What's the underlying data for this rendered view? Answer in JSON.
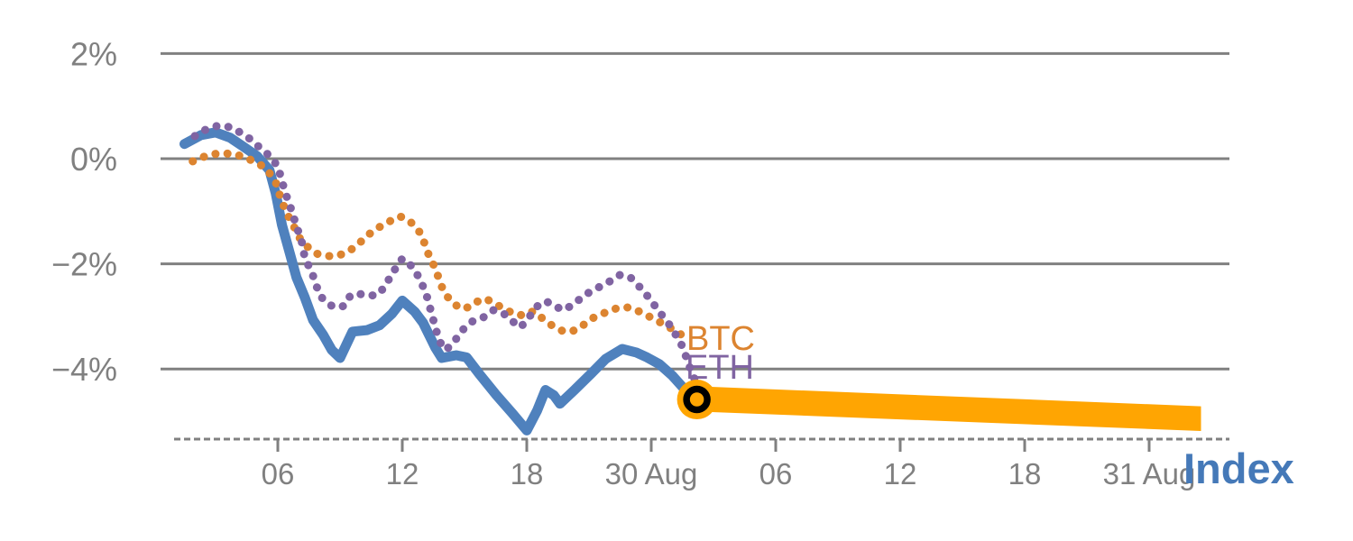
{
  "chart_data": {
    "type": "line",
    "title": "",
    "description": "Percent change of crypto Index (solid blue) vs BTC and ETH (dotted) over ~2 days with an orange projection band extending to 31 Aug",
    "x_axis": {
      "unit": "hours (ticks every 6h; day boundaries labeled with date)",
      "ticks": [
        {
          "hour": 6,
          "label": "06"
        },
        {
          "hour": 12,
          "label": "12"
        },
        {
          "hour": 18,
          "label": "18"
        },
        {
          "hour": 24,
          "label": "30 Aug"
        },
        {
          "hour": 30,
          "label": "06"
        },
        {
          "hour": 36,
          "label": "12"
        },
        {
          "hour": 42,
          "label": "18"
        },
        {
          "hour": 48,
          "label": "31 Aug"
        }
      ]
    },
    "y_axis": {
      "unit": "percent change",
      "ticks": [
        {
          "value": 2,
          "label": "2%"
        },
        {
          "value": 0,
          "label": "0%"
        },
        {
          "value": -2,
          "label": "−2%"
        },
        {
          "value": -4,
          "label": "−4%"
        }
      ],
      "ylim": [
        -5.4,
        2.3
      ],
      "grid": true
    },
    "series": [
      {
        "name": "Index",
        "style": "solid",
        "color": "#4F81BD",
        "points": [
          [
            1.5,
            0.28
          ],
          [
            2.3,
            0.45
          ],
          [
            3.0,
            0.5
          ],
          [
            3.7,
            0.4
          ],
          [
            4.3,
            0.24
          ],
          [
            5.0,
            0.05
          ],
          [
            5.6,
            -0.22
          ],
          [
            5.9,
            -0.66
          ],
          [
            6.2,
            -1.26
          ],
          [
            6.6,
            -1.83
          ],
          [
            6.9,
            -2.26
          ],
          [
            7.3,
            -2.64
          ],
          [
            7.7,
            -3.07
          ],
          [
            8.2,
            -3.36
          ],
          [
            8.6,
            -3.64
          ],
          [
            9.0,
            -3.79
          ],
          [
            9.6,
            -3.29
          ],
          [
            10.3,
            -3.26
          ],
          [
            10.9,
            -3.17
          ],
          [
            11.5,
            -2.95
          ],
          [
            12.0,
            -2.7
          ],
          [
            12.6,
            -2.91
          ],
          [
            13.0,
            -3.12
          ],
          [
            13.6,
            -3.6
          ],
          [
            13.9,
            -3.79
          ],
          [
            14.6,
            -3.74
          ],
          [
            15.1,
            -3.78
          ],
          [
            15.7,
            -4.09
          ],
          [
            16.5,
            -4.48
          ],
          [
            17.3,
            -4.84
          ],
          [
            18.0,
            -5.17
          ],
          [
            18.5,
            -4.79
          ],
          [
            18.9,
            -4.4
          ],
          [
            19.3,
            -4.5
          ],
          [
            19.6,
            -4.66
          ],
          [
            20.3,
            -4.4
          ],
          [
            21.1,
            -4.09
          ],
          [
            21.8,
            -3.81
          ],
          [
            22.6,
            -3.62
          ],
          [
            23.3,
            -3.69
          ],
          [
            23.8,
            -3.78
          ],
          [
            24.4,
            -3.91
          ],
          [
            25.0,
            -4.12
          ],
          [
            25.5,
            -4.34
          ],
          [
            26.0,
            -4.53
          ]
        ]
      },
      {
        "name": "BTC",
        "style": "dotted",
        "color": "#DC8430",
        "points": [
          [
            1.9,
            -0.05
          ],
          [
            2.3,
            0.02
          ],
          [
            2.9,
            0.09
          ],
          [
            3.4,
            0.1
          ],
          [
            3.9,
            0.09
          ],
          [
            4.4,
            0.03
          ],
          [
            4.9,
            -0.06
          ],
          [
            5.3,
            -0.15
          ],
          [
            5.5,
            -0.21
          ],
          [
            5.7,
            -0.34
          ],
          [
            6.0,
            -0.52
          ],
          [
            6.1,
            -0.71
          ],
          [
            6.3,
            -0.91
          ],
          [
            6.5,
            -1.09
          ],
          [
            6.8,
            -1.31
          ],
          [
            7.0,
            -1.48
          ],
          [
            7.3,
            -1.64
          ],
          [
            7.6,
            -1.72
          ],
          [
            7.9,
            -1.81
          ],
          [
            8.3,
            -1.84
          ],
          [
            8.6,
            -1.86
          ],
          [
            9.0,
            -1.83
          ],
          [
            9.3,
            -1.78
          ],
          [
            9.7,
            -1.69
          ],
          [
            10.3,
            -1.47
          ],
          [
            10.7,
            -1.34
          ],
          [
            11.2,
            -1.24
          ],
          [
            11.6,
            -1.14
          ],
          [
            11.9,
            -1.1
          ],
          [
            12.3,
            -1.17
          ],
          [
            12.6,
            -1.28
          ],
          [
            12.9,
            -1.43
          ],
          [
            13.1,
            -1.64
          ],
          [
            13.3,
            -1.86
          ],
          [
            13.6,
            -2.09
          ],
          [
            13.8,
            -2.33
          ],
          [
            14.0,
            -2.53
          ],
          [
            14.3,
            -2.69
          ],
          [
            14.6,
            -2.79
          ],
          [
            14.9,
            -2.86
          ],
          [
            15.3,
            -2.81
          ],
          [
            15.6,
            -2.72
          ],
          [
            16.0,
            -2.66
          ],
          [
            16.3,
            -2.72
          ],
          [
            16.7,
            -2.81
          ],
          [
            17.0,
            -2.88
          ],
          [
            17.3,
            -2.93
          ],
          [
            17.7,
            -2.98
          ],
          [
            18.0,
            -2.91
          ],
          [
            18.4,
            -2.91
          ],
          [
            18.7,
            -3.02
          ],
          [
            19.1,
            -3.14
          ],
          [
            19.4,
            -3.22
          ],
          [
            19.8,
            -3.29
          ],
          [
            20.1,
            -3.29
          ],
          [
            20.5,
            -3.24
          ],
          [
            20.8,
            -3.14
          ],
          [
            21.2,
            -3.03
          ],
          [
            21.5,
            -2.97
          ],
          [
            21.9,
            -2.91
          ],
          [
            22.2,
            -2.86
          ],
          [
            22.6,
            -2.83
          ],
          [
            22.9,
            -2.83
          ],
          [
            23.3,
            -2.88
          ],
          [
            23.6,
            -2.95
          ],
          [
            24.0,
            -3.02
          ],
          [
            24.3,
            -3.09
          ],
          [
            24.7,
            -3.16
          ],
          [
            25.0,
            -3.24
          ],
          [
            25.3,
            -3.31
          ],
          [
            25.5,
            -3.36
          ]
        ]
      },
      {
        "name": "ETH",
        "style": "dotted",
        "color": "#8064A2",
        "points": [
          [
            2.0,
            0.43
          ],
          [
            2.3,
            0.5
          ],
          [
            2.6,
            0.57
          ],
          [
            3.0,
            0.62
          ],
          [
            3.5,
            0.62
          ],
          [
            3.9,
            0.57
          ],
          [
            4.3,
            0.47
          ],
          [
            4.8,
            0.34
          ],
          [
            5.1,
            0.22
          ],
          [
            5.5,
            0.09
          ],
          [
            6.0,
            -0.14
          ],
          [
            6.2,
            -0.43
          ],
          [
            6.4,
            -0.69
          ],
          [
            6.6,
            -0.91
          ],
          [
            6.8,
            -1.16
          ],
          [
            7.0,
            -1.4
          ],
          [
            7.2,
            -1.64
          ],
          [
            7.3,
            -1.9
          ],
          [
            7.6,
            -2.12
          ],
          [
            7.8,
            -2.34
          ],
          [
            8.0,
            -2.59
          ],
          [
            8.3,
            -2.72
          ],
          [
            8.6,
            -2.8
          ],
          [
            8.9,
            -2.83
          ],
          [
            9.2,
            -2.8
          ],
          [
            9.5,
            -2.6
          ],
          [
            9.9,
            -2.57
          ],
          [
            10.3,
            -2.6
          ],
          [
            10.6,
            -2.6
          ],
          [
            10.9,
            -2.57
          ],
          [
            11.3,
            -2.33
          ],
          [
            11.7,
            -2.07
          ],
          [
            12.0,
            -1.9
          ],
          [
            12.3,
            -1.98
          ],
          [
            12.6,
            -2.12
          ],
          [
            12.8,
            -2.26
          ],
          [
            13.0,
            -2.43
          ],
          [
            13.2,
            -2.64
          ],
          [
            13.4,
            -2.93
          ],
          [
            13.6,
            -3.22
          ],
          [
            13.8,
            -3.48
          ],
          [
            14.1,
            -3.64
          ],
          [
            14.5,
            -3.48
          ],
          [
            14.9,
            -3.26
          ],
          [
            15.4,
            -3.09
          ],
          [
            15.9,
            -3.02
          ],
          [
            16.4,
            -2.88
          ],
          [
            16.9,
            -2.95
          ],
          [
            17.3,
            -3.09
          ],
          [
            17.7,
            -3.21
          ],
          [
            18.1,
            -3.02
          ],
          [
            18.5,
            -2.81
          ],
          [
            18.9,
            -2.71
          ],
          [
            19.3,
            -2.78
          ],
          [
            19.7,
            -2.88
          ],
          [
            20.1,
            -2.81
          ],
          [
            20.5,
            -2.69
          ],
          [
            20.9,
            -2.57
          ],
          [
            21.3,
            -2.48
          ],
          [
            21.7,
            -2.4
          ],
          [
            22.2,
            -2.29
          ],
          [
            22.5,
            -2.21
          ],
          [
            23.0,
            -2.26
          ],
          [
            23.3,
            -2.38
          ],
          [
            23.7,
            -2.55
          ],
          [
            24.0,
            -2.71
          ],
          [
            24.3,
            -2.86
          ],
          [
            24.6,
            -3.02
          ],
          [
            24.9,
            -3.17
          ],
          [
            25.2,
            -3.36
          ],
          [
            25.5,
            -3.57
          ],
          [
            25.7,
            -3.79
          ],
          [
            25.9,
            -4.02
          ],
          [
            26.1,
            -4.2
          ]
        ]
      }
    ],
    "forecast_band": {
      "color": "#FFA502",
      "start_hour": 26.2,
      "end_hour": 50.5,
      "top_start_pct": -4.33,
      "top_end_pct": -4.71,
      "bottom_start_pct": -4.81,
      "bottom_end_pct": -5.18
    },
    "marker": {
      "shape": "ring",
      "hour": 26.2,
      "pct": -4.58,
      "ring_color": "#000000",
      "fill_color": "#FFA502"
    },
    "legend_position": "end-of-line labels (BTC, ETH near last dots; Index at bottom right)"
  },
  "labels": {
    "btc": "BTC",
    "eth": "ETH",
    "index": "Index"
  },
  "colors": {
    "index_blue": "#4F81BD",
    "btc_orange": "#DC8430",
    "eth_purple": "#8064A2",
    "band_orange": "#FFA502",
    "marker_ring_black": "#000000",
    "grid_gray": "#808080",
    "axis_text_gray": "#808080",
    "index_label_blue": "#4579B8",
    "background": "#FFFFFF"
  }
}
